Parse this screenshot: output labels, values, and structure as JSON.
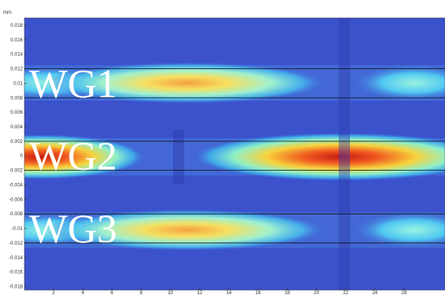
{
  "chart_data": {
    "type": "field",
    "y_unit": "mm",
    "ylim": [
      -0.0185,
      0.019
    ],
    "yticks": [
      0.018,
      0.016,
      0.014,
      0.012,
      0.01,
      0.008,
      0.006,
      0.004,
      0.002,
      0,
      -0.002,
      -0.004,
      -0.006,
      -0.008,
      -0.01,
      -0.012,
      -0.014,
      -0.016,
      -0.018
    ],
    "xlim": [
      0,
      28.8
    ],
    "xticks": [
      2,
      4,
      6,
      8,
      10,
      12,
      14,
      16,
      18,
      20,
      22,
      24,
      26
    ],
    "waveguides": [
      {
        "name": "WG1",
        "top": 0.012,
        "bottom": 0.008
      },
      {
        "name": "WG2",
        "top": 0.002,
        "bottom": -0.002
      },
      {
        "name": "WG3",
        "top": -0.008,
        "bottom": -0.012
      }
    ]
  }
}
